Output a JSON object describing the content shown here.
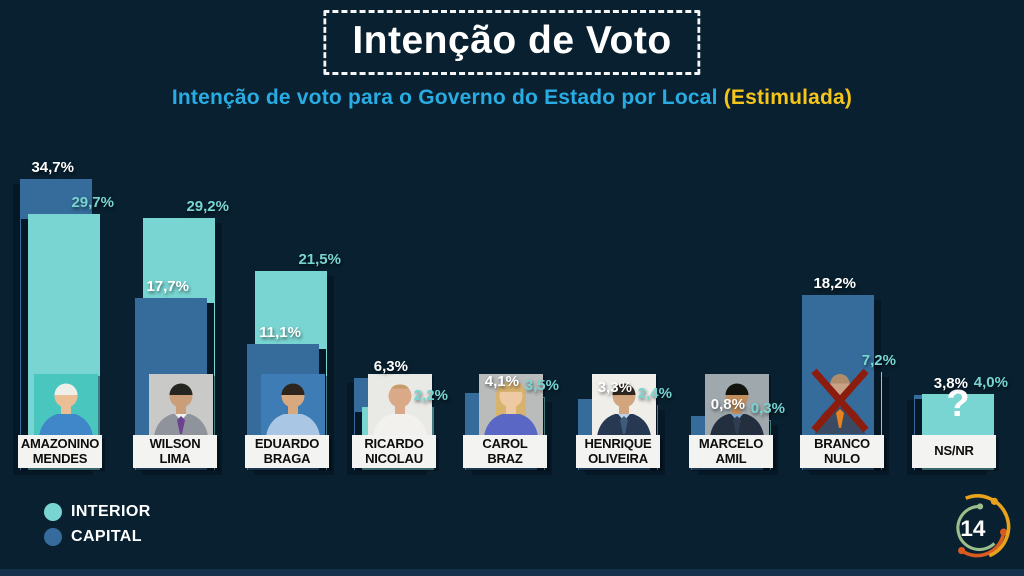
{
  "page": {
    "background": "#08202F",
    "bottom_strip_color": "#14304A"
  },
  "header": {
    "title": "Intenção de Voto",
    "subtitle": "Intenção de voto para o Governo do Estado por Local",
    "subtitle_highlight": "(Estimulada)",
    "subtitle_color": "#29ACE3",
    "highlight_color": "#F6C51C"
  },
  "legend": [
    {
      "id": "interior",
      "label": "INTERIOR",
      "color": "#79D5D2"
    },
    {
      "id": "capital",
      "label": "CAPITAL",
      "color": "#356C9B"
    }
  ],
  "logo": {
    "number": "14",
    "arc_colors": [
      "#9CBE8D",
      "#D85B21",
      "#E8A31D"
    ]
  },
  "chart_data": {
    "type": "bar",
    "title": "Intenção de Voto",
    "subtitle": "Intenção de voto para o Governo do Estado por Local (Estimulada)",
    "unit": "%",
    "grid": false,
    "legend_position": "bottom-left",
    "series_colors": {
      "interior": "#79D5D2",
      "capital": "#356C9B"
    },
    "label_colors": {
      "interior": "#79D5D2",
      "capital": "#FFFFFF"
    },
    "categories": [
      "AMAZONINO MENDES",
      "WILSON LIMA",
      "EDUARDO BRAGA",
      "RICARDO NICOLAU",
      "CAROL BRAZ",
      "HENRIQUE OLIVEIRA",
      "MARCELO AMIL",
      "BRANCO NULO",
      "NS/NR"
    ],
    "series": [
      {
        "name": "INTERIOR",
        "values": [
          29.7,
          29.2,
          21.5,
          2.2,
          3.5,
          2.4,
          0.3,
          7.2,
          4.0
        ]
      },
      {
        "name": "CAPITAL",
        "values": [
          34.7,
          17.7,
          11.1,
          6.3,
          4.1,
          3.3,
          0.8,
          18.2,
          3.8
        ]
      }
    ],
    "bars": [
      {
        "name": "AMAZONINO MENDES",
        "name_lines": [
          "AMAZONINO",
          "MENDES"
        ],
        "capital_value": 34.7,
        "interior_value": 29.7,
        "capital_label": "34,7%",
        "interior_label": "29,7%",
        "front": "interior",
        "avatar": {
          "type": "person",
          "bg": "#49C7BF",
          "skin": "#ECBE96",
          "hair": "#EFEFEA",
          "hairStyle": "short",
          "suit": "#3F87C9",
          "tie": null,
          "collar": null
        }
      },
      {
        "name": "WILSON LIMA",
        "name_lines": [
          "WILSON",
          "LIMA"
        ],
        "capital_value": 17.7,
        "interior_value": 29.2,
        "capital_label": "17,7%",
        "interior_label": "29,2%",
        "front": "capital",
        "avatar": {
          "type": "person",
          "bg": "#C9C9C7",
          "skin": "#C99E78",
          "hair": "#262620",
          "hairStyle": "short",
          "suit": "#8F939C",
          "tie": "#6B4190",
          "collar": "#F2F2F2"
        }
      },
      {
        "name": "EDUARDO BRAGA",
        "name_lines": [
          "EDUARDO",
          "BRAGA"
        ],
        "capital_value": 11.1,
        "interior_value": 21.5,
        "capital_label": "11,1%",
        "interior_label": "21,5%",
        "front": "capital",
        "avatar": {
          "type": "person",
          "bg": "#3D7CB5",
          "skin": "#D8A87F",
          "hair": "#2E241C",
          "hairStyle": "short",
          "suit": "#A9C7E4",
          "tie": null,
          "collar": null
        }
      },
      {
        "name": "RICARDO NICOLAU",
        "name_lines": [
          "RICARDO",
          "NICOLAU"
        ],
        "capital_value": 6.3,
        "interior_value": 2.2,
        "capital_label": "6,3%",
        "interior_label": "2,2%",
        "front": "interior",
        "avatar": {
          "type": "person",
          "bg": "#E9E9E5",
          "skin": "#D9A988",
          "hair": "#C79A66",
          "hairStyle": "recede",
          "suit": "#F2F1ED",
          "tie": null,
          "collar": null
        }
      },
      {
        "name": "CAROL BRAZ",
        "name_lines": [
          "CAROL",
          "BRAZ"
        ],
        "capital_value": 4.1,
        "interior_value": 3.5,
        "capital_label": "4,1%",
        "interior_label": "3,5%",
        "front": "capital",
        "avatar": {
          "type": "person",
          "bg": "#B9BCBA",
          "skin": "#EDC9A4",
          "hair": "#D8B36E",
          "hairStyle": "long",
          "suit": "#5A67C4",
          "tie": null,
          "collar": null
        }
      },
      {
        "name": "HENRIQUE OLIVEIRA",
        "name_lines": [
          "HENRIQUE",
          "OLIVEIRA"
        ],
        "capital_value": 3.3,
        "interior_value": 2.4,
        "capital_label": "3,3%",
        "interior_label": "2,4%",
        "front": "capital",
        "avatar": {
          "type": "person",
          "bg": "#EFEEE9",
          "skin": "#D2A57E",
          "hair": "#342B22",
          "hairStyle": "short",
          "suit": "#273852",
          "tie": "#3E5B7A",
          "collar": "#BBD3E8"
        }
      },
      {
        "name": "MARCELO AMIL",
        "name_lines": [
          "MARCELO",
          "AMIL"
        ],
        "capital_value": 0.8,
        "interior_value": 0.3,
        "capital_label": "0,8%",
        "interior_label": "0,3%",
        "front": "capital",
        "avatar": {
          "type": "person",
          "bg": "#9FA8AC",
          "skin": "#C38E5E",
          "hair": "#14140F",
          "hairStyle": "short",
          "suit": "#232E3E",
          "tie": "#2E3D52",
          "collar": "#7EA8CC"
        }
      },
      {
        "name": "BRANCO NULO",
        "name_lines": [
          "BRANCO",
          "NULO"
        ],
        "capital_value": 18.2,
        "interior_value": 7.2,
        "capital_label": "18,2%",
        "interior_label": "7,2%",
        "front": "capital",
        "avatar": {
          "type": "x",
          "head": "#C9A286",
          "hair": "#B08C6C",
          "suit": "#3A4A63",
          "tie": "#E8821E",
          "x_color": "#8C1D0E"
        }
      },
      {
        "name": "NS/NR",
        "name_lines": [
          "NS/NR"
        ],
        "capital_value": 3.8,
        "interior_value": 4.0,
        "capital_label": "3,8%",
        "interior_label": "4,0%",
        "front": "interior",
        "avatar": {
          "type": "question",
          "glyph": "?"
        }
      }
    ]
  }
}
